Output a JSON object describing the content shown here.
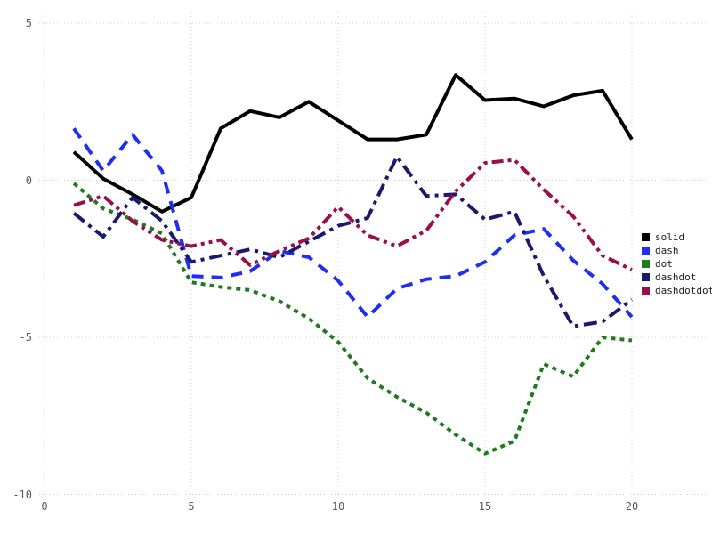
{
  "chart_data": {
    "type": "line",
    "title": "",
    "xlabel": "",
    "ylabel": "",
    "xlim": [
      0,
      20.6
    ],
    "ylim": [
      -10.4,
      5.5
    ],
    "xticks": [
      0,
      5,
      10,
      15,
      20
    ],
    "yticks": [
      5,
      0,
      -5,
      -10
    ],
    "x_tick_labels": [
      "0",
      "5",
      "10",
      "15",
      "20"
    ],
    "y_tick_labels": [
      "5",
      "0",
      "-5",
      "-10"
    ],
    "grid": true,
    "grid_style": "dotted",
    "grid_color": "#cccccc",
    "legend_position": "right",
    "x": [
      1,
      2,
      3,
      4,
      5,
      6,
      7,
      8,
      9,
      10,
      11,
      12,
      13,
      14,
      15,
      16,
      17,
      18,
      19,
      20
    ],
    "series": [
      {
        "name": "solid",
        "linestyle": "solid",
        "color": "#000000",
        "values": [
          0.9,
          0.05,
          -0.45,
          -1.0,
          -0.55,
          1.65,
          2.2,
          2.0,
          2.5,
          1.9,
          1.3,
          1.3,
          1.45,
          3.35,
          2.55,
          2.6,
          2.35,
          2.7,
          2.85,
          1.3
        ]
      },
      {
        "name": "dash",
        "linestyle": "dash",
        "color": "#1e2ff2",
        "values": [
          1.65,
          0.3,
          1.45,
          0.3,
          -3.05,
          -3.1,
          -2.9,
          -2.25,
          -2.45,
          -3.2,
          -4.35,
          -3.45,
          -3.15,
          -3.05,
          -2.6,
          -1.75,
          -1.55,
          -2.55,
          -3.3,
          -4.35
        ]
      },
      {
        "name": "dot",
        "linestyle": "dot",
        "color": "#1f7a1f",
        "values": [
          -0.1,
          -0.9,
          -1.25,
          -1.7,
          -3.25,
          -3.4,
          -3.5,
          -3.85,
          -4.4,
          -5.15,
          -6.3,
          -6.9,
          -7.4,
          -8.1,
          -8.7,
          -8.3,
          -5.85,
          -6.25,
          -5.0,
          -5.1
        ]
      },
      {
        "name": "dashdot",
        "linestyle": "dashdot",
        "color": "#191970",
        "values": [
          -1.05,
          -1.8,
          -0.55,
          -1.3,
          -2.6,
          -2.4,
          -2.2,
          -2.45,
          -1.95,
          -1.45,
          -1.2,
          0.75,
          -0.5,
          -0.45,
          -1.25,
          -1.0,
          -3.05,
          -4.65,
          -4.5,
          -3.8
        ]
      },
      {
        "name": "dashdotdot",
        "linestyle": "dashdotdot",
        "color": "#9a0f48",
        "values": [
          -0.8,
          -0.5,
          -1.3,
          -1.9,
          -2.1,
          -1.9,
          -2.7,
          -2.25,
          -1.85,
          -0.85,
          -1.75,
          -2.1,
          -1.6,
          -0.35,
          0.55,
          0.65,
          -0.3,
          -1.15,
          -2.4,
          -2.85
        ]
      }
    ]
  },
  "legend": {
    "entries": [
      "solid",
      "dash",
      "dot",
      "dashdot",
      "dashdotdot"
    ]
  }
}
